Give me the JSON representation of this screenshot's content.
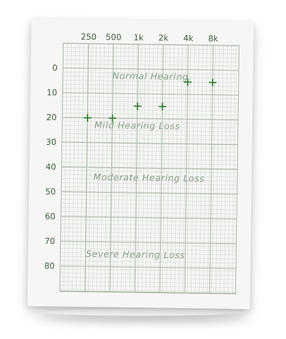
{
  "chart_data": {
    "type": "scatter",
    "title": "",
    "xlabel": "",
    "ylabel": "",
    "x_scale": "log2",
    "categories": [
      "250",
      "500",
      "1k",
      "2k",
      "4k",
      "8k"
    ],
    "x": [
      250,
      500,
      1000,
      2000,
      4000,
      8000
    ],
    "y_ticks": [
      0,
      10,
      20,
      30,
      40,
      50,
      60,
      70,
      80
    ],
    "ylim": [
      -10,
      90
    ],
    "y_inverted": true,
    "grid": true,
    "series": [
      {
        "values": [
          20,
          20,
          15,
          15,
          5,
          5
        ],
        "marker": "plus",
        "color": "#2e7d32"
      }
    ],
    "annotations": [
      {
        "text": "Normal Hearing",
        "x": 1414,
        "y": 3
      },
      {
        "text": "Mild Hearing Loss",
        "x": 1000,
        "y": 23
      },
      {
        "text": "Moderate Hearing Loss",
        "x": 1414,
        "y": 44
      },
      {
        "text": "Severe Hearing Loss",
        "x": 1000,
        "y": 75
      }
    ]
  },
  "colors": {
    "sheet": "#f6f6f4",
    "grid_minor": "#d4dbd2",
    "grid_major": "#a8b5a6",
    "tick_text": "#3e5e3e",
    "region_text": "#8ca08c",
    "marker": "#2e7d32"
  }
}
